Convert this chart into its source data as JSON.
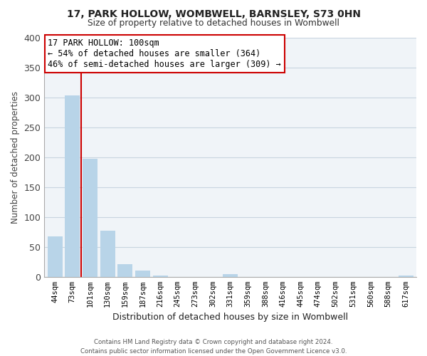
{
  "title1": "17, PARK HOLLOW, WOMBWELL, BARNSLEY, S73 0HN",
  "title2": "Size of property relative to detached houses in Wombwell",
  "xlabel": "Distribution of detached houses by size in Wombwell",
  "ylabel": "Number of detached properties",
  "categories": [
    "44sqm",
    "73sqm",
    "101sqm",
    "130sqm",
    "159sqm",
    "187sqm",
    "216sqm",
    "245sqm",
    "273sqm",
    "302sqm",
    "331sqm",
    "359sqm",
    "388sqm",
    "416sqm",
    "445sqm",
    "474sqm",
    "502sqm",
    "531sqm",
    "560sqm",
    "588sqm",
    "617sqm"
  ],
  "values": [
    68,
    303,
    197,
    77,
    21,
    10,
    2,
    0,
    0,
    0,
    4,
    0,
    0,
    0,
    0,
    0,
    0,
    0,
    0,
    0,
    2
  ],
  "bar_color": "#b8d4e8",
  "highlight_color": "#cc0000",
  "vline_x": 1.5,
  "annotation_title": "17 PARK HOLLOW: 100sqm",
  "annotation_line1": "← 54% of detached houses are smaller (364)",
  "annotation_line2": "46% of semi-detached houses are larger (309) →",
  "ylim": [
    0,
    400
  ],
  "yticks": [
    0,
    50,
    100,
    150,
    200,
    250,
    300,
    350,
    400
  ],
  "footer1": "Contains HM Land Registry data © Crown copyright and database right 2024.",
  "footer2": "Contains public sector information licensed under the Open Government Licence v3.0.",
  "bg_color": "#f0f4f8"
}
